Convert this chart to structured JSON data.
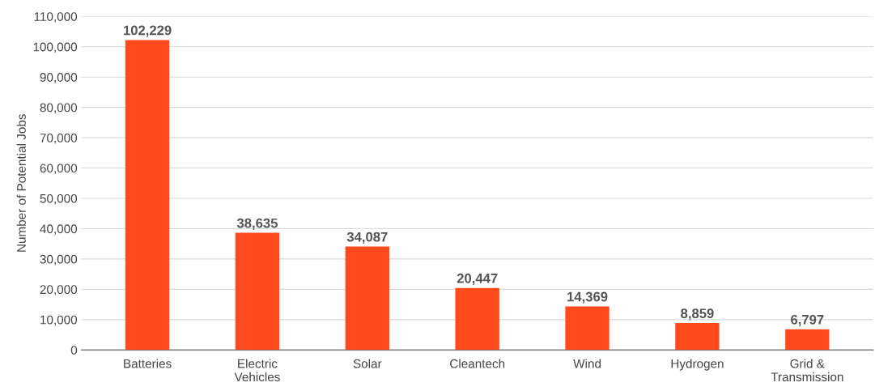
{
  "chart_data": {
    "type": "bar",
    "ylabel": "Number of Potential Jobs",
    "categories": [
      "Batteries",
      "Electric\nVehicles",
      "Solar",
      "Cleantech",
      "Wind",
      "Hydrogen",
      "Grid &\nTransmission"
    ],
    "values": [
      102229,
      38635,
      34087,
      20447,
      14369,
      8859,
      6797
    ],
    "value_labels": [
      "102,229",
      "38,635",
      "34,087",
      "20,447",
      "14,369",
      "8,859",
      "6,797"
    ],
    "color": "#ff4a1c",
    "ylim": [
      0,
      110000
    ],
    "yticks": [
      {
        "value": 0,
        "label": "0"
      },
      {
        "value": 10000,
        "label": "10,000"
      },
      {
        "value": 20000,
        "label": "20,000"
      },
      {
        "value": 30000,
        "label": "30,000"
      },
      {
        "value": 40000,
        "label": "40,000"
      },
      {
        "value": 50000,
        "label": "50,000"
      },
      {
        "value": 60000,
        "label": "60,000"
      },
      {
        "value": 70000,
        "label": "70,000"
      },
      {
        "value": 80000,
        "label": "80,000"
      },
      {
        "value": 90000,
        "label": "90,000"
      },
      {
        "value": 100000,
        "label": "100,000"
      },
      {
        "value": 110000,
        "label": "110,000"
      }
    ],
    "grid": "y"
  }
}
